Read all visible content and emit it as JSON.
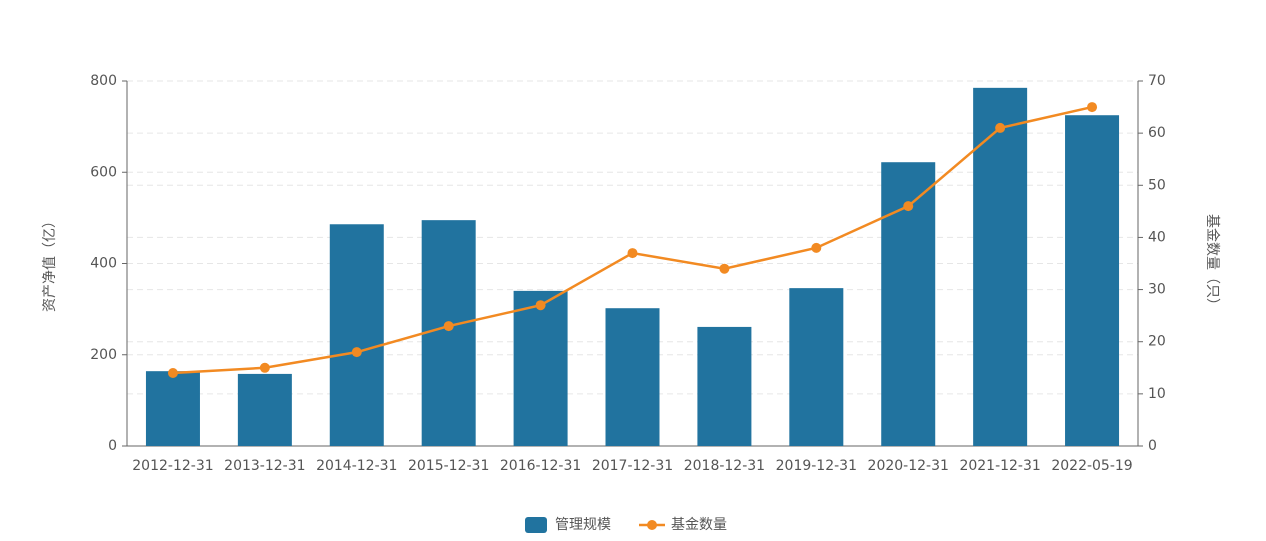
{
  "chart_data": {
    "type": "bar",
    "categories": [
      "2012-12-31",
      "2013-12-31",
      "2014-12-31",
      "2015-12-31",
      "2016-12-31",
      "2017-12-31",
      "2018-12-31",
      "2019-12-31",
      "2020-12-31",
      "2021-12-31",
      "2022-05-19"
    ],
    "series": [
      {
        "name": "管理规模",
        "type": "bar",
        "color": "#21739f",
        "values": [
          164,
          158,
          486,
          495,
          340,
          302,
          261,
          346,
          622,
          785,
          725
        ]
      },
      {
        "name": "基金数量",
        "type": "line",
        "axis": "y2",
        "color": "#f28a22",
        "values": [
          14,
          15,
          18,
          23,
          27,
          37,
          34,
          38,
          46,
          61,
          65
        ]
      }
    ],
    "ylabel": "资产净值（亿）",
    "y2label": "基金数量（只）",
    "ylim": [
      0,
      800
    ],
    "yticks": [
      0,
      200,
      400,
      600,
      800
    ],
    "y2lim": [
      0,
      70
    ],
    "y2ticks": [
      0,
      10,
      20,
      30,
      40,
      50,
      60,
      70
    ],
    "grid": true,
    "legend": "bottom"
  }
}
